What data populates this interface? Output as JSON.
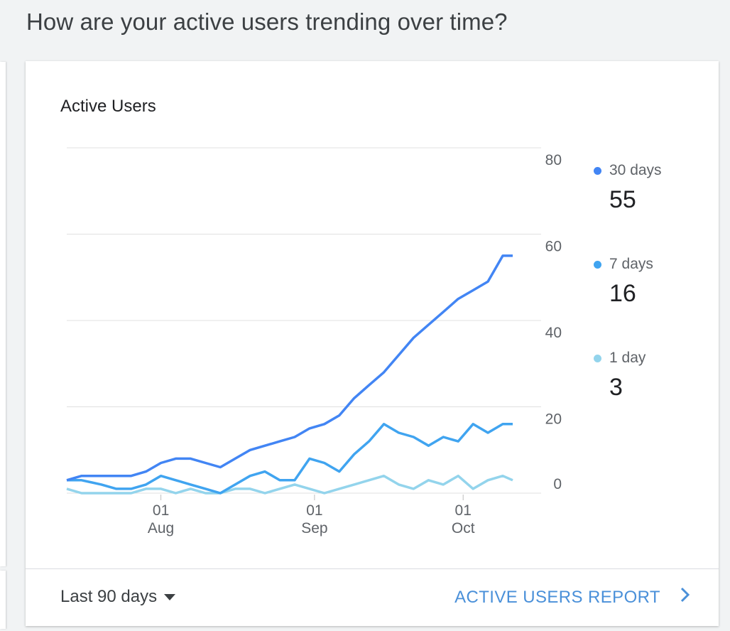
{
  "page": {
    "heading": "How are your active users trending over time?"
  },
  "card": {
    "title": "Active Users",
    "footer": {
      "range_label": "Last 90 days",
      "report_link": "ACTIVE USERS REPORT"
    }
  },
  "legend": [
    {
      "name": "30 days",
      "value": "55",
      "color": "#4285f4"
    },
    {
      "name": "7 days",
      "value": "16",
      "color": "#40a4f0"
    },
    {
      "name": "1 day",
      "value": "3",
      "color": "#93d4ec"
    }
  ],
  "chart_data": {
    "type": "line",
    "ylim": [
      0,
      80
    ],
    "y_ticks": [
      "0",
      "20",
      "40",
      "60",
      "80"
    ],
    "x_ticks": [
      {
        "day": "01",
        "month": "Aug"
      },
      {
        "day": "01",
        "month": "Sep"
      },
      {
        "day": "01",
        "month": "Oct"
      }
    ],
    "x_start": "2023-07-13",
    "x_tick_dates": [
      "2023-08-01",
      "2023-09-01",
      "2023-10-01"
    ],
    "x": [
      "2023-07-13",
      "2023-07-16",
      "2023-07-20",
      "2023-07-23",
      "2023-07-26",
      "2023-07-29",
      "2023-08-01",
      "2023-08-04",
      "2023-08-07",
      "2023-08-10",
      "2023-08-13",
      "2023-08-16",
      "2023-08-19",
      "2023-08-22",
      "2023-08-25",
      "2023-08-28",
      "2023-08-31",
      "2023-09-03",
      "2023-09-06",
      "2023-09-09",
      "2023-09-12",
      "2023-09-15",
      "2023-09-18",
      "2023-09-21",
      "2023-09-24",
      "2023-09-27",
      "2023-09-30",
      "2023-10-03",
      "2023-10-06",
      "2023-10-09",
      "2023-10-11"
    ],
    "series": [
      {
        "name": "30 days",
        "color": "#4285f4",
        "values": [
          3,
          4,
          4,
          4,
          4,
          5,
          7,
          8,
          8,
          7,
          6,
          8,
          10,
          11,
          12,
          13,
          15,
          16,
          18,
          22,
          25,
          28,
          32,
          36,
          39,
          42,
          45,
          47,
          49,
          55,
          55
        ]
      },
      {
        "name": "7 days",
        "color": "#40a4f0",
        "values": [
          3,
          3,
          2,
          1,
          1,
          2,
          4,
          3,
          2,
          1,
          0,
          2,
          4,
          5,
          3,
          3,
          8,
          7,
          5,
          9,
          12,
          16,
          14,
          13,
          11,
          13,
          12,
          16,
          14,
          16,
          16
        ]
      },
      {
        "name": "1 day",
        "color": "#93d4ec",
        "values": [
          1,
          0,
          0,
          0,
          0,
          1,
          1,
          0,
          1,
          0,
          0,
          1,
          1,
          0,
          1,
          2,
          1,
          0,
          1,
          2,
          3,
          4,
          2,
          1,
          3,
          2,
          4,
          1,
          3,
          4,
          3
        ]
      }
    ]
  }
}
